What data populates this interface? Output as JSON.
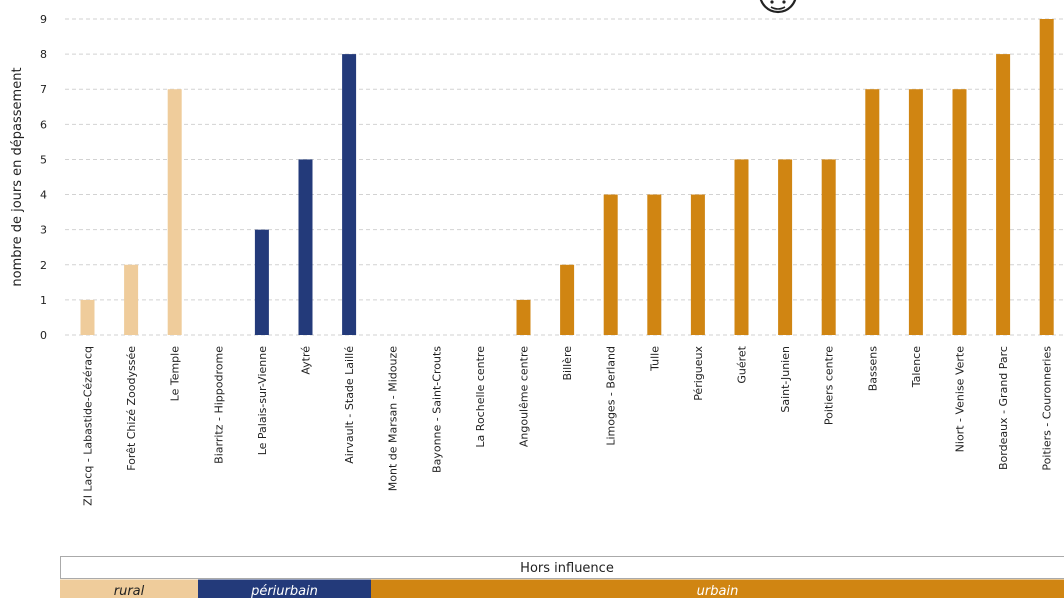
{
  "chart_data": {
    "type": "bar",
    "ylabel": "nombre de jours en dépassement",
    "ylim": [
      0,
      9
    ],
    "yticks": [
      0,
      1,
      2,
      3,
      4,
      5,
      6,
      7,
      8,
      9
    ],
    "grid": true,
    "categories": [
      "ZI Lacq - Labastide-Cézéracq",
      "Forêt Chizé Zoodyssée",
      "Le Temple",
      "Biarritz - Hippodrome",
      "Le Palais-sur-Vienne",
      "Aytré",
      "Airvault - Stade Laillé",
      "Mont de Marsan - Midouze",
      "Bayonne - Saint-Crouts",
      "La Rochelle centre",
      "Angoulême centre",
      "Billère",
      "Limoges - Berland",
      "Tulle",
      "Périgueux",
      "Guéret",
      "Saint-Junien",
      "Poitiers centre",
      "Bassens",
      "Talence",
      "Niort - Venise Verte",
      "Bordeaux - Grand Parc",
      "Poitiers - Couronneries"
    ],
    "values": [
      1,
      2,
      7,
      0,
      3,
      5,
      8,
      0,
      0,
      0,
      1,
      2,
      4,
      4,
      4,
      5,
      5,
      5,
      7,
      7,
      7,
      8,
      9
    ],
    "groups": [
      "rural",
      "rural",
      "rural",
      "périurbain",
      "périurbain",
      "périurbain",
      "périurbain",
      "urbain",
      "urbain",
      "urbain",
      "urbain",
      "urbain",
      "urbain",
      "urbain",
      "urbain",
      "urbain",
      "urbain",
      "urbain",
      "urbain",
      "urbain",
      "urbain",
      "urbain",
      "urbain"
    ],
    "group_colors": {
      "rural": "#efcc9b",
      "périurbain": "#233a7a",
      "urbain": "#d08512"
    },
    "influence_label": "Hors influence",
    "group_bands": [
      {
        "key": "rural",
        "label": "rural",
        "bg": "#efcc9b",
        "text_color": "#222222"
      },
      {
        "key": "périurbain",
        "label": "périurbain",
        "bg": "#233a7a",
        "text_color": "#ffffff"
      },
      {
        "key": "urbain",
        "label": "urbain",
        "bg": "#d08512",
        "text_color": "#ffffff"
      }
    ]
  }
}
